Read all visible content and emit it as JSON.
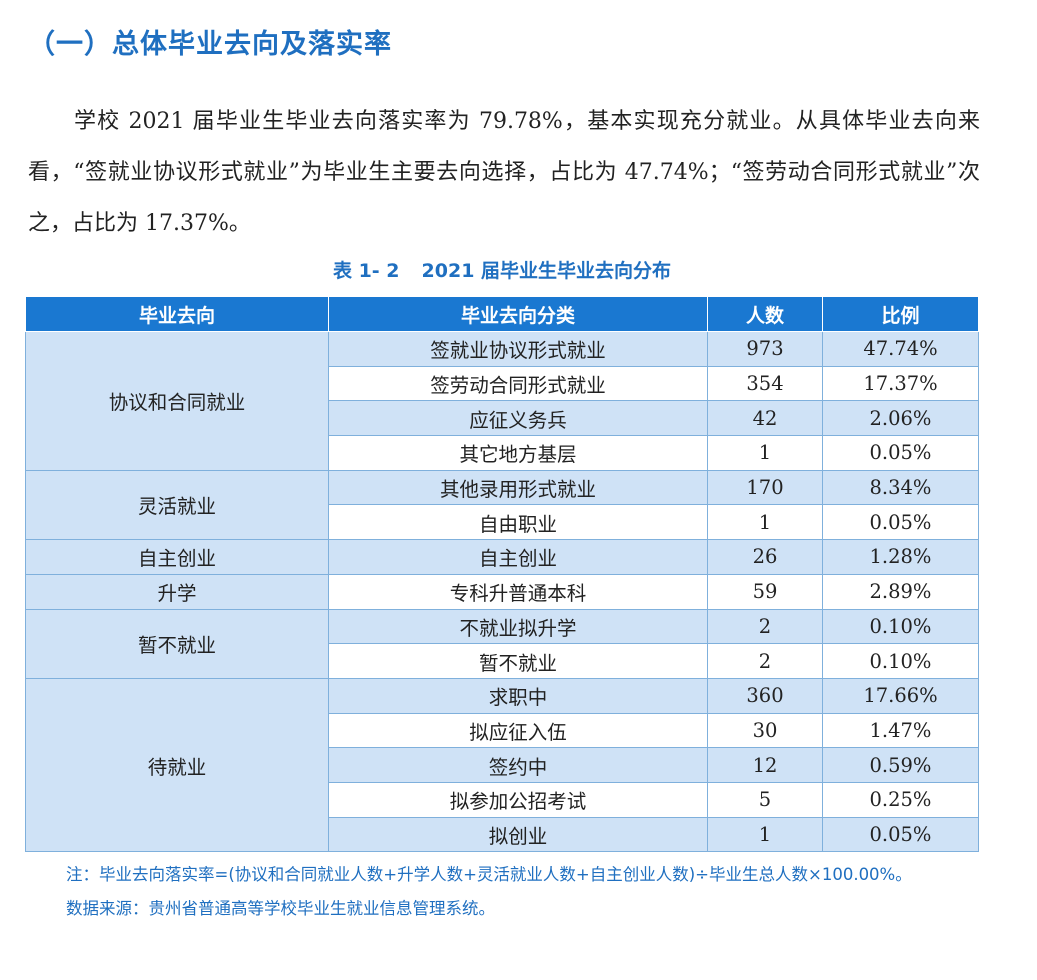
{
  "section_title": "（一）总体毕业去向及落实率",
  "paragraph": "学校 2021 届毕业生毕业去向落实率为 79.78%，基本实现充分就业。从具体毕业去向来看，“签就业协议形式就业”为毕业生主要去向选择，占比为 47.74%；“签劳动合同形式就业”次之，占比为 17.37%。",
  "caption": {
    "number": "表 1- 2",
    "text": "2021 届毕业生毕业去向分布"
  },
  "table": {
    "headers": [
      "毕业去向",
      "毕业去向分类",
      "人数",
      "比例"
    ],
    "groups": [
      {
        "name": "协议和合同就业",
        "rows": [
          {
            "category": "签就业协议形式就业",
            "count": "973",
            "ratio": "47.74%"
          },
          {
            "category": "签劳动合同形式就业",
            "count": "354",
            "ratio": "17.37%"
          },
          {
            "category": "应征义务兵",
            "count": "42",
            "ratio": "2.06%"
          },
          {
            "category": "其它地方基层",
            "count": "1",
            "ratio": "0.05%"
          }
        ]
      },
      {
        "name": "灵活就业",
        "rows": [
          {
            "category": "其他录用形式就业",
            "count": "170",
            "ratio": "8.34%"
          },
          {
            "category": "自由职业",
            "count": "1",
            "ratio": "0.05%"
          }
        ]
      },
      {
        "name": "自主创业",
        "rows": [
          {
            "category": "自主创业",
            "count": "26",
            "ratio": "1.28%"
          }
        ]
      },
      {
        "name": "升学",
        "rows": [
          {
            "category": "专科升普通本科",
            "count": "59",
            "ratio": "2.89%"
          }
        ]
      },
      {
        "name": "暂不就业",
        "rows": [
          {
            "category": "不就业拟升学",
            "count": "2",
            "ratio": "0.10%"
          },
          {
            "category": "暂不就业",
            "count": "2",
            "ratio": "0.10%"
          }
        ]
      },
      {
        "name": "待就业",
        "rows": [
          {
            "category": "求职中",
            "count": "360",
            "ratio": "17.66%"
          },
          {
            "category": "拟应征入伍",
            "count": "30",
            "ratio": "1.47%"
          },
          {
            "category": "签约中",
            "count": "12",
            "ratio": "0.59%"
          },
          {
            "category": "拟参加公招考试",
            "count": "5",
            "ratio": "0.25%"
          },
          {
            "category": "拟创业",
            "count": "1",
            "ratio": "0.05%"
          }
        ]
      }
    ]
  },
  "notes": {
    "formula": "注：毕业去向落实率=(协议和合同就业人数+升学人数+灵活就业人数+自主创业人数)÷毕业生总人数×100.00%。",
    "source": "数据来源：贵州省普通高等学校毕业生就业信息管理系统。"
  },
  "colors": {
    "accent": "#1f6fc0",
    "header_bg": "#1a78d1",
    "row_alt_bg": "#cfe2f6"
  }
}
